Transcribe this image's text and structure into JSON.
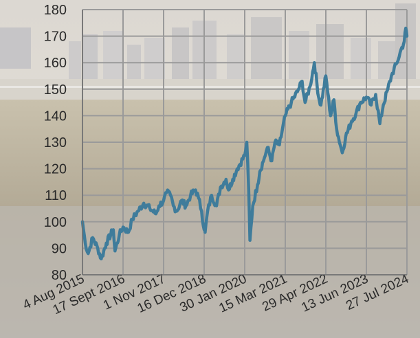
{
  "chart_data": {
    "type": "line",
    "title": "",
    "xlabel": "",
    "ylabel": "",
    "ylim": [
      80,
      180
    ],
    "yticks": [
      80,
      90,
      100,
      110,
      120,
      130,
      140,
      150,
      160,
      170,
      180
    ],
    "xticks": [
      "4 Aug 2015",
      "17 Sept 2016",
      "1 Nov 2017",
      "16 Dec 2018",
      "30 Jan 2020",
      "15 Mar 2021",
      "29 Apr 2022",
      "13 Jun 2023",
      "27 Jul 2024"
    ],
    "grid": true,
    "legend": "none",
    "line_color": "#3f7c9b",
    "series": [
      {
        "x": [
          "2015-08-04",
          "2015-09-01",
          "2015-10-01",
          "2015-11-15",
          "2016-01-05",
          "2016-02-10",
          "2016-04-01",
          "2016-06-10",
          "2016-06-28",
          "2016-08-10",
          "2016-09-17",
          "2016-11-10",
          "2016-12-20",
          "2017-02-15",
          "2017-04-15",
          "2017-06-15",
          "2017-08-15",
          "2017-09-15",
          "2017-11-01",
          "2017-12-01",
          "2018-01-10",
          "2018-02-08",
          "2018-03-15",
          "2018-05-01",
          "2018-06-15",
          "2018-08-01",
          "2018-09-20",
          "2018-10-20",
          "2018-11-20",
          "2018-12-16",
          "2018-12-26",
          "2019-01-20",
          "2019-03-01",
          "2019-04-20",
          "2019-05-30",
          "2019-07-25",
          "2019-08-20",
          "2019-10-01",
          "2019-11-15",
          "2020-01-30",
          "2020-02-20",
          "2020-03-10",
          "2020-03-23",
          "2020-04-20",
          "2020-06-08",
          "2020-07-01",
          "2020-08-15",
          "2020-09-15",
          "2020-10-30",
          "2020-12-01",
          "2021-01-15",
          "2021-03-15",
          "2021-05-15",
          "2021-07-15",
          "2021-09-01",
          "2021-10-01",
          "2021-11-20",
          "2022-01-03",
          "2022-02-15",
          "2022-03-10",
          "2022-04-29",
          "2022-06-16",
          "2022-07-20",
          "2022-08-16",
          "2022-10-12",
          "2022-11-15",
          "2023-01-15",
          "2023-03-01",
          "2023-04-15",
          "2023-06-13",
          "2023-07-31",
          "2023-09-15",
          "2023-10-27",
          "2023-12-01",
          "2024-01-15",
          "2024-03-01",
          "2024-04-19",
          "2024-05-20",
          "2024-06-30",
          "2024-07-15",
          "2024-07-27"
        ],
        "values": [
          100,
          92,
          88,
          94,
          90,
          86,
          92,
          97,
          89,
          95,
          98,
          96,
          101,
          104,
          107,
          105,
          103,
          106,
          108,
          111,
          110,
          106,
          104,
          108,
          106,
          110,
          112,
          109,
          104,
          97,
          96,
          104,
          110,
          106,
          113,
          116,
          112,
          116,
          120,
          125,
          130,
          112,
          93,
          106,
          114,
          119,
          124,
          128,
          123,
          130,
          129,
          140,
          145,
          149,
          153,
          145,
          151,
          160,
          147,
          144,
          155,
          140,
          146,
          135,
          126,
          132,
          138,
          141,
          145,
          147,
          144,
          148,
          137,
          144,
          150,
          156,
          160,
          164,
          168,
          173,
          170
        ]
      }
    ]
  }
}
